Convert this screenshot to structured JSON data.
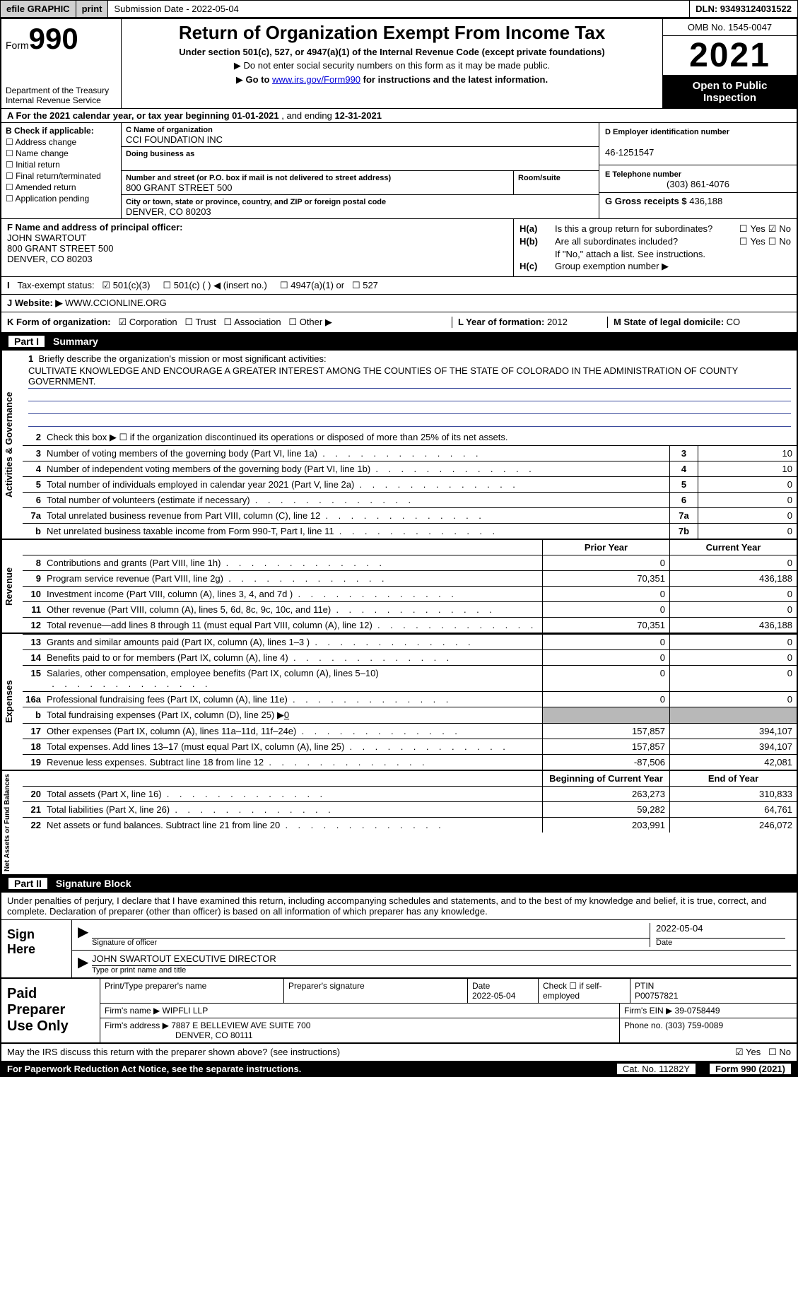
{
  "topbar": {
    "efile": "efile GRAPHIC",
    "print": "print",
    "submission": "Submission Date - 2022-05-04",
    "dln": "DLN: 93493124031522"
  },
  "header": {
    "form_label": "Form",
    "form_num": "990",
    "dept": "Department of the Treasury",
    "irs": "Internal Revenue Service",
    "title": "Return of Organization Exempt From Income Tax",
    "sub1": "Under section 501(c), 527, or 4947(a)(1) of the Internal Revenue Code (except private foundations)",
    "sub2a": "Do not enter social security numbers on this form as it may be made public.",
    "sub2b_pre": "Go to ",
    "sub2b_link": "www.irs.gov/Form990",
    "sub2b_post": " for instructions and the latest information.",
    "omb": "OMB No. 1545-0047",
    "year": "2021",
    "inspect": "Open to Public Inspection"
  },
  "row_a": {
    "label": "A For the 2021 calendar year, or tax year beginning ",
    "begin": "01-01-2021",
    "mid": "  , and ending ",
    "end": "12-31-2021"
  },
  "col_b": {
    "label": "B Check if applicable:",
    "items": [
      "Address change",
      "Name change",
      "Initial return",
      "Final return/terminated",
      "Amended return",
      "Application pending"
    ]
  },
  "col_c": {
    "name_lbl": "C Name of organization",
    "name": "CCI FOUNDATION INC",
    "dba_lbl": "Doing business as",
    "dba": "",
    "addr_lbl": "Number and street (or P.O. box if mail is not delivered to street address)",
    "addr": "800 GRANT STREET 500",
    "room_lbl": "Room/suite",
    "city_lbl": "City or town, state or province, country, and ZIP or foreign postal code",
    "city": "DENVER, CO  80203"
  },
  "col_d": {
    "ein_lbl": "D Employer identification number",
    "ein": "46-1251547",
    "tel_lbl": "E Telephone number",
    "tel": "(303) 861-4076",
    "gross_lbl": "G Gross receipts $ ",
    "gross": "436,188"
  },
  "col_f": {
    "lbl": "F Name and address of principal officer:",
    "name": "JOHN SWARTOUT",
    "addr1": "800 GRANT STREET 500",
    "addr2": "DENVER, CO  80203"
  },
  "col_h": {
    "ha_lbl": "H(a)",
    "ha_txt": "Is this a group return for subordinates?",
    "ha_yes": "Yes",
    "ha_no": "No",
    "hb_lbl": "H(b)",
    "hb_txt": "Are all subordinates included?",
    "hb_yes": "Yes",
    "hb_no": "No",
    "hb_note": "If \"No,\" attach a list. See instructions.",
    "hc_lbl": "H(c)",
    "hc_txt": "Group exemption number ▶"
  },
  "row_i": {
    "lbl": "Tax-exempt status:",
    "o1": "501(c)(3)",
    "o2": "501(c) (  ) ◀ (insert no.)",
    "o3": "4947(a)(1) or",
    "o4": "527"
  },
  "row_j": {
    "lbl": "J   Website: ▶",
    "val": "  WWW.CCIONLINE.ORG"
  },
  "row_k": {
    "lbl": "K Form of organization:",
    "o1": "Corporation",
    "o2": "Trust",
    "o3": "Association",
    "o4": "Other ▶",
    "l_lbl": "L Year of formation: ",
    "l_val": "2012",
    "m_lbl": "M State of legal domicile: ",
    "m_val": "CO"
  },
  "part1": {
    "num": "Part I",
    "title": "Summary"
  },
  "mission": {
    "lbl_num": "1",
    "lbl": "Briefly describe the organization's mission or most significant activities:",
    "text": "CULTIVATE KNOWLEDGE AND ENCOURAGE A GREATER INTEREST AMONG THE COUNTIES OF THE STATE OF COLORADO IN THE ADMINISTRATION OF COUNTY GOVERNMENT."
  },
  "line2": {
    "num": "2",
    "txt": "Check this box ▶ ☐  if the organization discontinued its operations or disposed of more than 25% of its net assets."
  },
  "gov_lines": [
    {
      "n": "3",
      "d": "Number of voting members of the governing body (Part VI, line 1a)",
      "b": "3",
      "v": "10"
    },
    {
      "n": "4",
      "d": "Number of independent voting members of the governing body (Part VI, line 1b)",
      "b": "4",
      "v": "10"
    },
    {
      "n": "5",
      "d": "Total number of individuals employed in calendar year 2021 (Part V, line 2a)",
      "b": "5",
      "v": "0"
    },
    {
      "n": "6",
      "d": "Total number of volunteers (estimate if necessary)",
      "b": "6",
      "v": "0"
    },
    {
      "n": "7a",
      "d": "Total unrelated business revenue from Part VIII, column (C), line 12",
      "b": "7a",
      "v": "0"
    },
    {
      "n": "b",
      "d": "Net unrelated business taxable income from Form 990-T, Part I, line 11",
      "b": "7b",
      "v": "0"
    }
  ],
  "fin_hdr": {
    "py": "Prior Year",
    "cy": "Current Year"
  },
  "rev_lines": [
    {
      "n": "8",
      "d": "Contributions and grants (Part VIII, line 1h)",
      "py": "0",
      "cy": "0"
    },
    {
      "n": "9",
      "d": "Program service revenue (Part VIII, line 2g)",
      "py": "70,351",
      "cy": "436,188"
    },
    {
      "n": "10",
      "d": "Investment income (Part VIII, column (A), lines 3, 4, and 7d )",
      "py": "0",
      "cy": "0"
    },
    {
      "n": "11",
      "d": "Other revenue (Part VIII, column (A), lines 5, 6d, 8c, 9c, 10c, and 11e)",
      "py": "0",
      "cy": "0"
    },
    {
      "n": "12",
      "d": "Total revenue—add lines 8 through 11 (must equal Part VIII, column (A), line 12)",
      "py": "70,351",
      "cy": "436,188"
    }
  ],
  "exp_lines": [
    {
      "n": "13",
      "d": "Grants and similar amounts paid (Part IX, column (A), lines 1–3 )",
      "py": "0",
      "cy": "0"
    },
    {
      "n": "14",
      "d": "Benefits paid to or for members (Part IX, column (A), line 4)",
      "py": "0",
      "cy": "0"
    },
    {
      "n": "15",
      "d": "Salaries, other compensation, employee benefits (Part IX, column (A), lines 5–10)",
      "py": "0",
      "cy": "0"
    },
    {
      "n": "16a",
      "d": "Professional fundraising fees (Part IX, column (A), line 11e)",
      "py": "0",
      "cy": "0"
    }
  ],
  "line16b": {
    "n": "b",
    "d": "Total fundraising expenses (Part IX, column (D), line 25) ▶",
    "v": "0"
  },
  "exp_lines2": [
    {
      "n": "17",
      "d": "Other expenses (Part IX, column (A), lines 11a–11d, 11f–24e)",
      "py": "157,857",
      "cy": "394,107"
    },
    {
      "n": "18",
      "d": "Total expenses. Add lines 13–17 (must equal Part IX, column (A), line 25)",
      "py": "157,857",
      "cy": "394,107"
    },
    {
      "n": "19",
      "d": "Revenue less expenses. Subtract line 18 from line 12",
      "py": "-87,506",
      "cy": "42,081"
    }
  ],
  "na_hdr": {
    "py": "Beginning of Current Year",
    "cy": "End of Year"
  },
  "na_lines": [
    {
      "n": "20",
      "d": "Total assets (Part X, line 16)",
      "py": "263,273",
      "cy": "310,833"
    },
    {
      "n": "21",
      "d": "Total liabilities (Part X, line 26)",
      "py": "59,282",
      "cy": "64,761"
    },
    {
      "n": "22",
      "d": "Net assets or fund balances. Subtract line 21 from line 20",
      "py": "203,991",
      "cy": "246,072"
    }
  ],
  "vlabels": {
    "gov": "Activities & Governance",
    "rev": "Revenue",
    "exp": "Expenses",
    "na": "Net Assets or Fund Balances"
  },
  "part2": {
    "num": "Part II",
    "title": "Signature Block"
  },
  "sig": {
    "decl": "Under penalties of perjury, I declare that I have examined this return, including accompanying schedules and statements, and to the best of my knowledge and belief, it is true, correct, and complete. Declaration of preparer (other than officer) is based on all information of which preparer has any knowledge.",
    "here": "Sign Here",
    "sig_lbl": "Signature of officer",
    "date": "2022-05-04",
    "date_lbl": "Date",
    "name": "JOHN SWARTOUT EXECUTIVE DIRECTOR",
    "name_lbl": "Type or print name and title"
  },
  "prep": {
    "title": "Paid Preparer Use Only",
    "pt_name_lbl": "Print/Type preparer's name",
    "pt_name": "",
    "pt_sig_lbl": "Preparer's signature",
    "pt_date_lbl": "Date",
    "pt_date": "2022-05-04",
    "pt_check_lbl": "Check ☐ if self-employed",
    "ptin_lbl": "PTIN",
    "ptin": "P00757821",
    "firm_name_lbl": "Firm's name    ▶ ",
    "firm_name": "WIPFLI LLP",
    "firm_ein_lbl": "Firm's EIN ▶ ",
    "firm_ein": "39-0758449",
    "firm_addr_lbl": "Firm's address ▶ ",
    "firm_addr1": "7887 E BELLEVIEW AVE SUITE 700",
    "firm_addr2": "DENVER, CO  80111",
    "phone_lbl": "Phone no. ",
    "phone": "(303) 759-0089"
  },
  "discuss": {
    "txt": "May the IRS discuss this return with the preparer shown above? (see instructions)",
    "yes": "Yes",
    "no": "No"
  },
  "footer": {
    "f1": "For Paperwork Reduction Act Notice, see the separate instructions.",
    "f2": "Cat. No. 11282Y",
    "f3": "Form 990 (2021)"
  }
}
